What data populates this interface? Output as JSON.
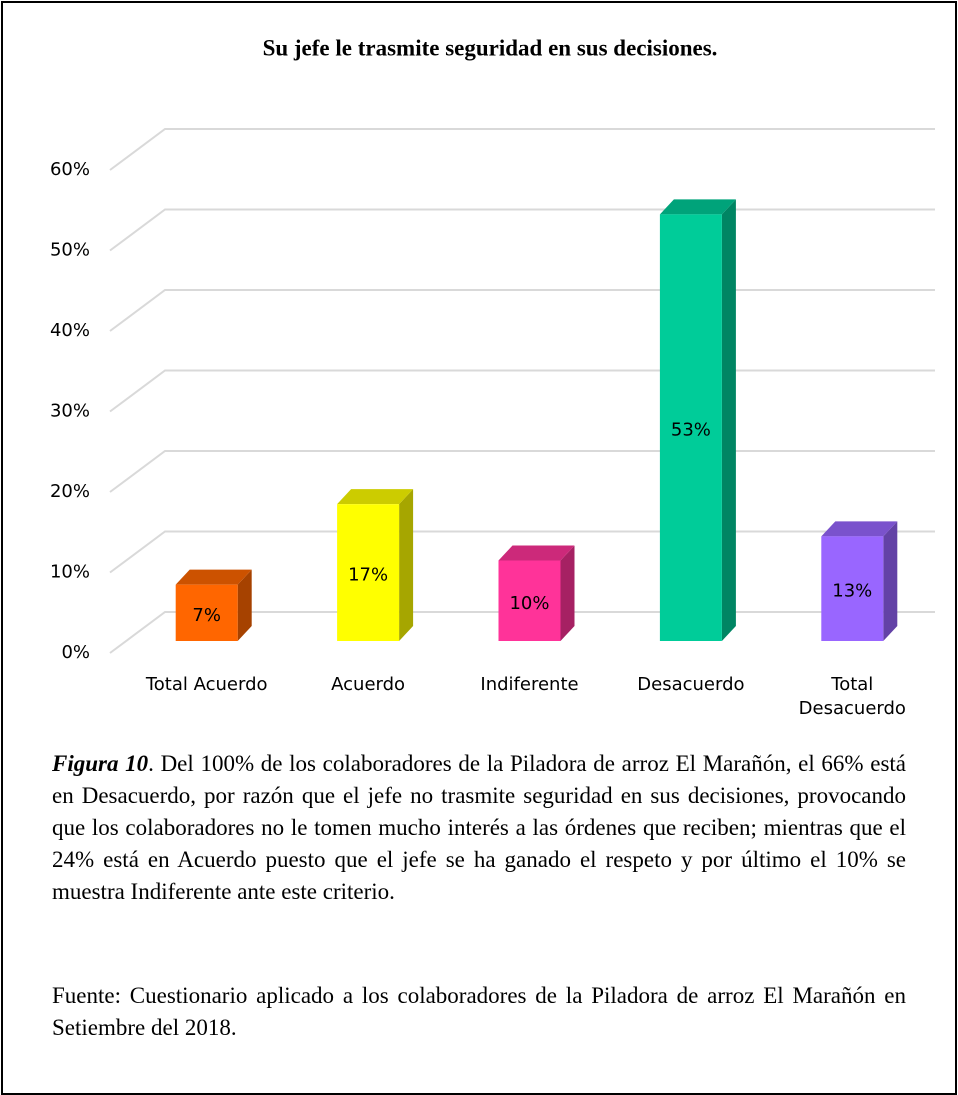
{
  "chart_data": {
    "type": "bar3d",
    "title": "Su jefe le trasmite seguridad en sus decisiones.",
    "categories": [
      "Total Acuerdo",
      "Acuerdo",
      "Indiferente",
      "Desacuerdo",
      "Total Desacuerdo"
    ],
    "values": [
      7,
      17,
      10,
      53,
      13
    ],
    "value_labels": [
      "7%",
      "17%",
      "10%",
      "53%",
      "13%"
    ],
    "colors": [
      "#ff6600",
      "#ffff00",
      "#ff3399",
      "#00cc99",
      "#9966ff"
    ],
    "ylim": [
      0,
      60
    ],
    "yticks": [
      {
        "value": 0,
        "label": "0%"
      },
      {
        "value": 10,
        "label": "10%"
      },
      {
        "value": 20,
        "label": "20%"
      },
      {
        "value": 30,
        "label": "30%"
      },
      {
        "value": 40,
        "label": "40%"
      },
      {
        "value": 50,
        "label": "50%"
      },
      {
        "value": 60,
        "label": "60%"
      }
    ],
    "grid": true
  },
  "caption": {
    "label": "Figura 10",
    "text": ". Del 100% de los colaboradores de la Piladora de arroz El Marañón, el 66% está en Desacuerdo, por razón que el jefe no trasmite seguridad en sus decisiones, provocando que los colaboradores no le tomen mucho interés a las órdenes que reciben; mientras que el 24% está en Acuerdo puesto que el jefe se ha ganado el respeto y por último el 10% se muestra Indiferente ante este criterio.",
    "source": "Fuente: Cuestionario aplicado a los colaboradores de la Piladora de arroz El Marañón en Setiembre del 2018."
  }
}
